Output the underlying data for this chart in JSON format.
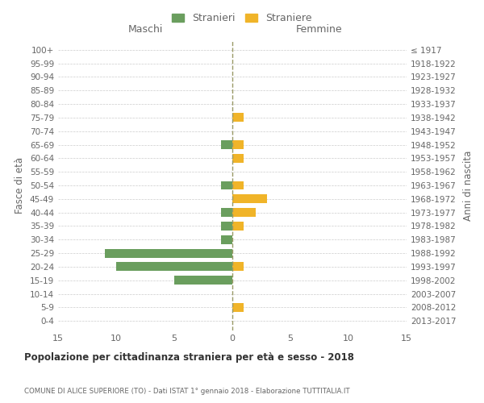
{
  "age_groups": [
    "0-4",
    "5-9",
    "10-14",
    "15-19",
    "20-24",
    "25-29",
    "30-34",
    "35-39",
    "40-44",
    "45-49",
    "50-54",
    "55-59",
    "60-64",
    "65-69",
    "70-74",
    "75-79",
    "80-84",
    "85-89",
    "90-94",
    "95-99",
    "100+"
  ],
  "birth_years": [
    "2013-2017",
    "2008-2012",
    "2003-2007",
    "1998-2002",
    "1993-1997",
    "1988-1992",
    "1983-1987",
    "1978-1982",
    "1973-1977",
    "1968-1972",
    "1963-1967",
    "1958-1962",
    "1953-1957",
    "1948-1952",
    "1943-1947",
    "1938-1942",
    "1933-1937",
    "1928-1932",
    "1923-1927",
    "1918-1922",
    "≤ 1917"
  ],
  "males": [
    0,
    0,
    0,
    5,
    10,
    11,
    1,
    1,
    1,
    0,
    1,
    0,
    0,
    1,
    0,
    0,
    0,
    0,
    0,
    0,
    0
  ],
  "females": [
    0,
    1,
    0,
    0,
    1,
    0,
    0,
    1,
    2,
    3,
    1,
    0,
    1,
    1,
    0,
    1,
    0,
    0,
    0,
    0,
    0
  ],
  "male_color": "#6a9e5e",
  "female_color": "#f0b429",
  "male_label": "Stranieri",
  "female_label": "Straniere",
  "xlim": 15,
  "title": "Popolazione per cittadinanza straniera per età e sesso - 2018",
  "subtitle": "COMUNE DI ALICE SUPERIORE (TO) - Dati ISTAT 1° gennaio 2018 - Elaborazione TUTTITALIA.IT",
  "ylabel_left": "Fasce di età",
  "ylabel_right": "Anni di nascita",
  "xlabel_left": "Maschi",
  "xlabel_right": "Femmine",
  "background_color": "#ffffff",
  "grid_color": "#cccccc",
  "tick_color": "#999999",
  "label_color": "#666666"
}
